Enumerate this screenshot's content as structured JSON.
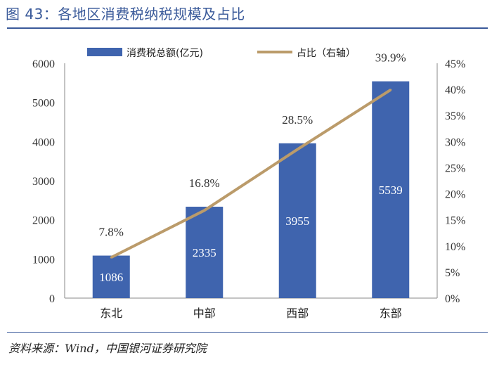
{
  "header": {
    "title": "图 43：各地区消费税纳税规模及占比"
  },
  "footer": {
    "source": "资料来源：Wind，中国银河证券研究院"
  },
  "colors": {
    "bar": "#3f64ae",
    "line": "#bb9b6a",
    "title": "#3a5a9a"
  },
  "chart_data": {
    "type": "bar",
    "categories": [
      "东北",
      "中部",
      "西部",
      "东部"
    ],
    "series": [
      {
        "name": "消费税总额(亿元)",
        "axis": "left",
        "type": "bar",
        "values": [
          1086,
          2335,
          3955,
          5539
        ]
      },
      {
        "name": "占比（右轴）",
        "axis": "right",
        "type": "line",
        "values": [
          7.8,
          16.8,
          28.5,
          39.9
        ]
      }
    ],
    "bar_value_labels": [
      "1086",
      "2335",
      "3955",
      "5539"
    ],
    "line_value_labels": [
      "7.8%",
      "16.8%",
      "28.5%",
      "39.9%"
    ],
    "ylim": [
      0,
      6000
    ],
    "yticks": [
      0,
      1000,
      2000,
      3000,
      4000,
      5000,
      6000
    ],
    "ytick_labels": [
      "0",
      "1000",
      "2000",
      "3000",
      "4000",
      "5000",
      "6000"
    ],
    "y2lim": [
      0,
      45
    ],
    "y2ticks": [
      0,
      5,
      10,
      15,
      20,
      25,
      30,
      35,
      40,
      45
    ],
    "y2tick_labels": [
      "0%",
      "5%",
      "10%",
      "15%",
      "20%",
      "25%",
      "30%",
      "35%",
      "40%",
      "45%"
    ],
    "legend_position": "top-center",
    "grid": false
  }
}
